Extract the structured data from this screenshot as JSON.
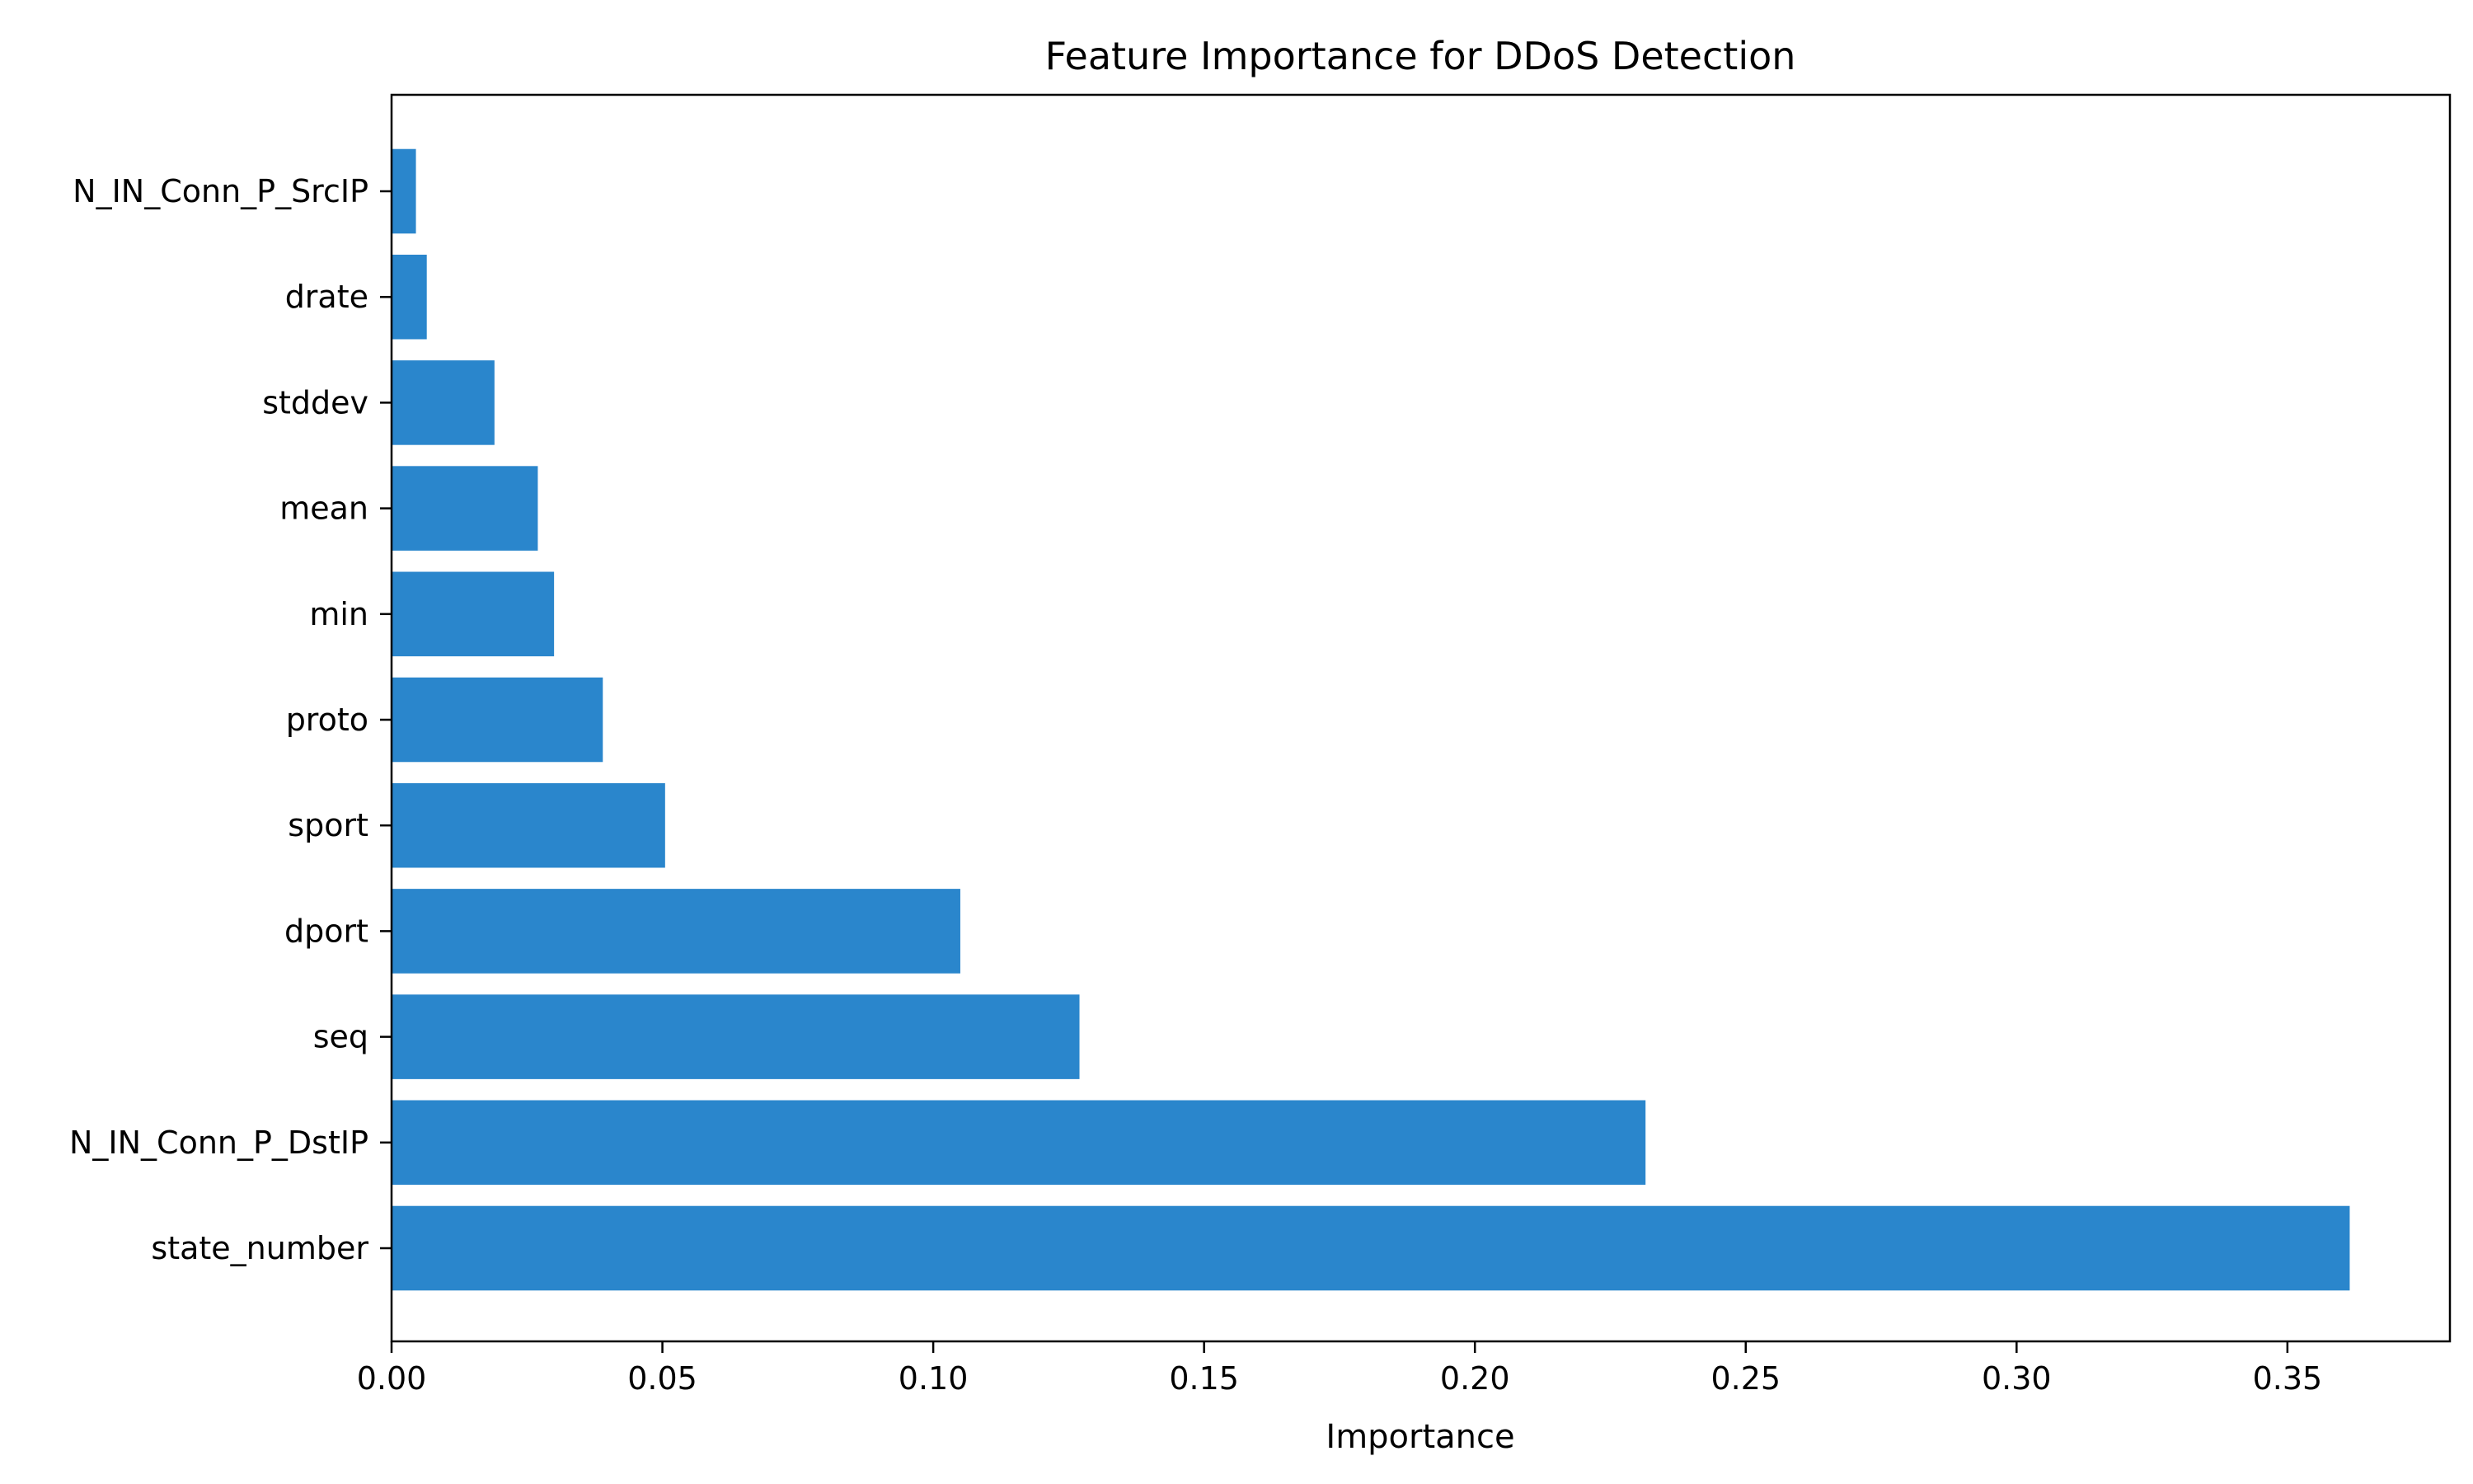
{
  "chart_data": {
    "type": "bar",
    "orientation": "horizontal",
    "title": "Feature Importance for DDoS Detection",
    "xlabel": "Importance",
    "ylabel": "",
    "categories": [
      "state_number",
      "N_IN_Conn_P_DstIP",
      "seq",
      "dport",
      "sport",
      "proto",
      "min",
      "mean",
      "stddev",
      "drate",
      "N_IN_Conn_P_SrcIP"
    ],
    "values": [
      0.3615,
      0.2315,
      0.127,
      0.105,
      0.0505,
      0.039,
      0.03,
      0.027,
      0.019,
      0.0065,
      0.0045
    ],
    "xlim": [
      0,
      0.38
    ],
    "xticks": [
      0.0,
      0.05,
      0.1,
      0.15,
      0.2,
      0.25,
      0.3,
      0.35
    ],
    "xtick_labels": [
      "0.00",
      "0.05",
      "0.10",
      "0.15",
      "0.20",
      "0.25",
      "0.30",
      "0.35"
    ],
    "grid": false,
    "bar_color": "#2a86cc"
  }
}
